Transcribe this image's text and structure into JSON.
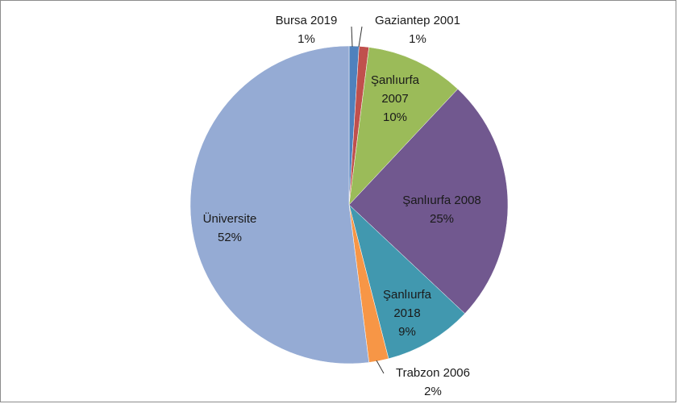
{
  "chart_data": {
    "type": "pie",
    "categories": [
      "Bursa 2019",
      "Gaziantep 2001",
      "Şanlıurfa 2007",
      "Şanlıurfa 2008",
      "Şanlıurfa 2018",
      "Trabzon 2006",
      "Üniversite"
    ],
    "values": [
      1,
      1,
      10,
      25,
      9,
      2,
      52
    ],
    "value_labels": [
      "1%",
      "1%",
      "10%",
      "25%",
      "9%",
      "2%",
      "52%"
    ],
    "colors": [
      "#4f81bd",
      "#c0504d",
      "#9bbb59",
      "#71588f",
      "#4198af",
      "#f79646",
      "#95abd4"
    ]
  }
}
